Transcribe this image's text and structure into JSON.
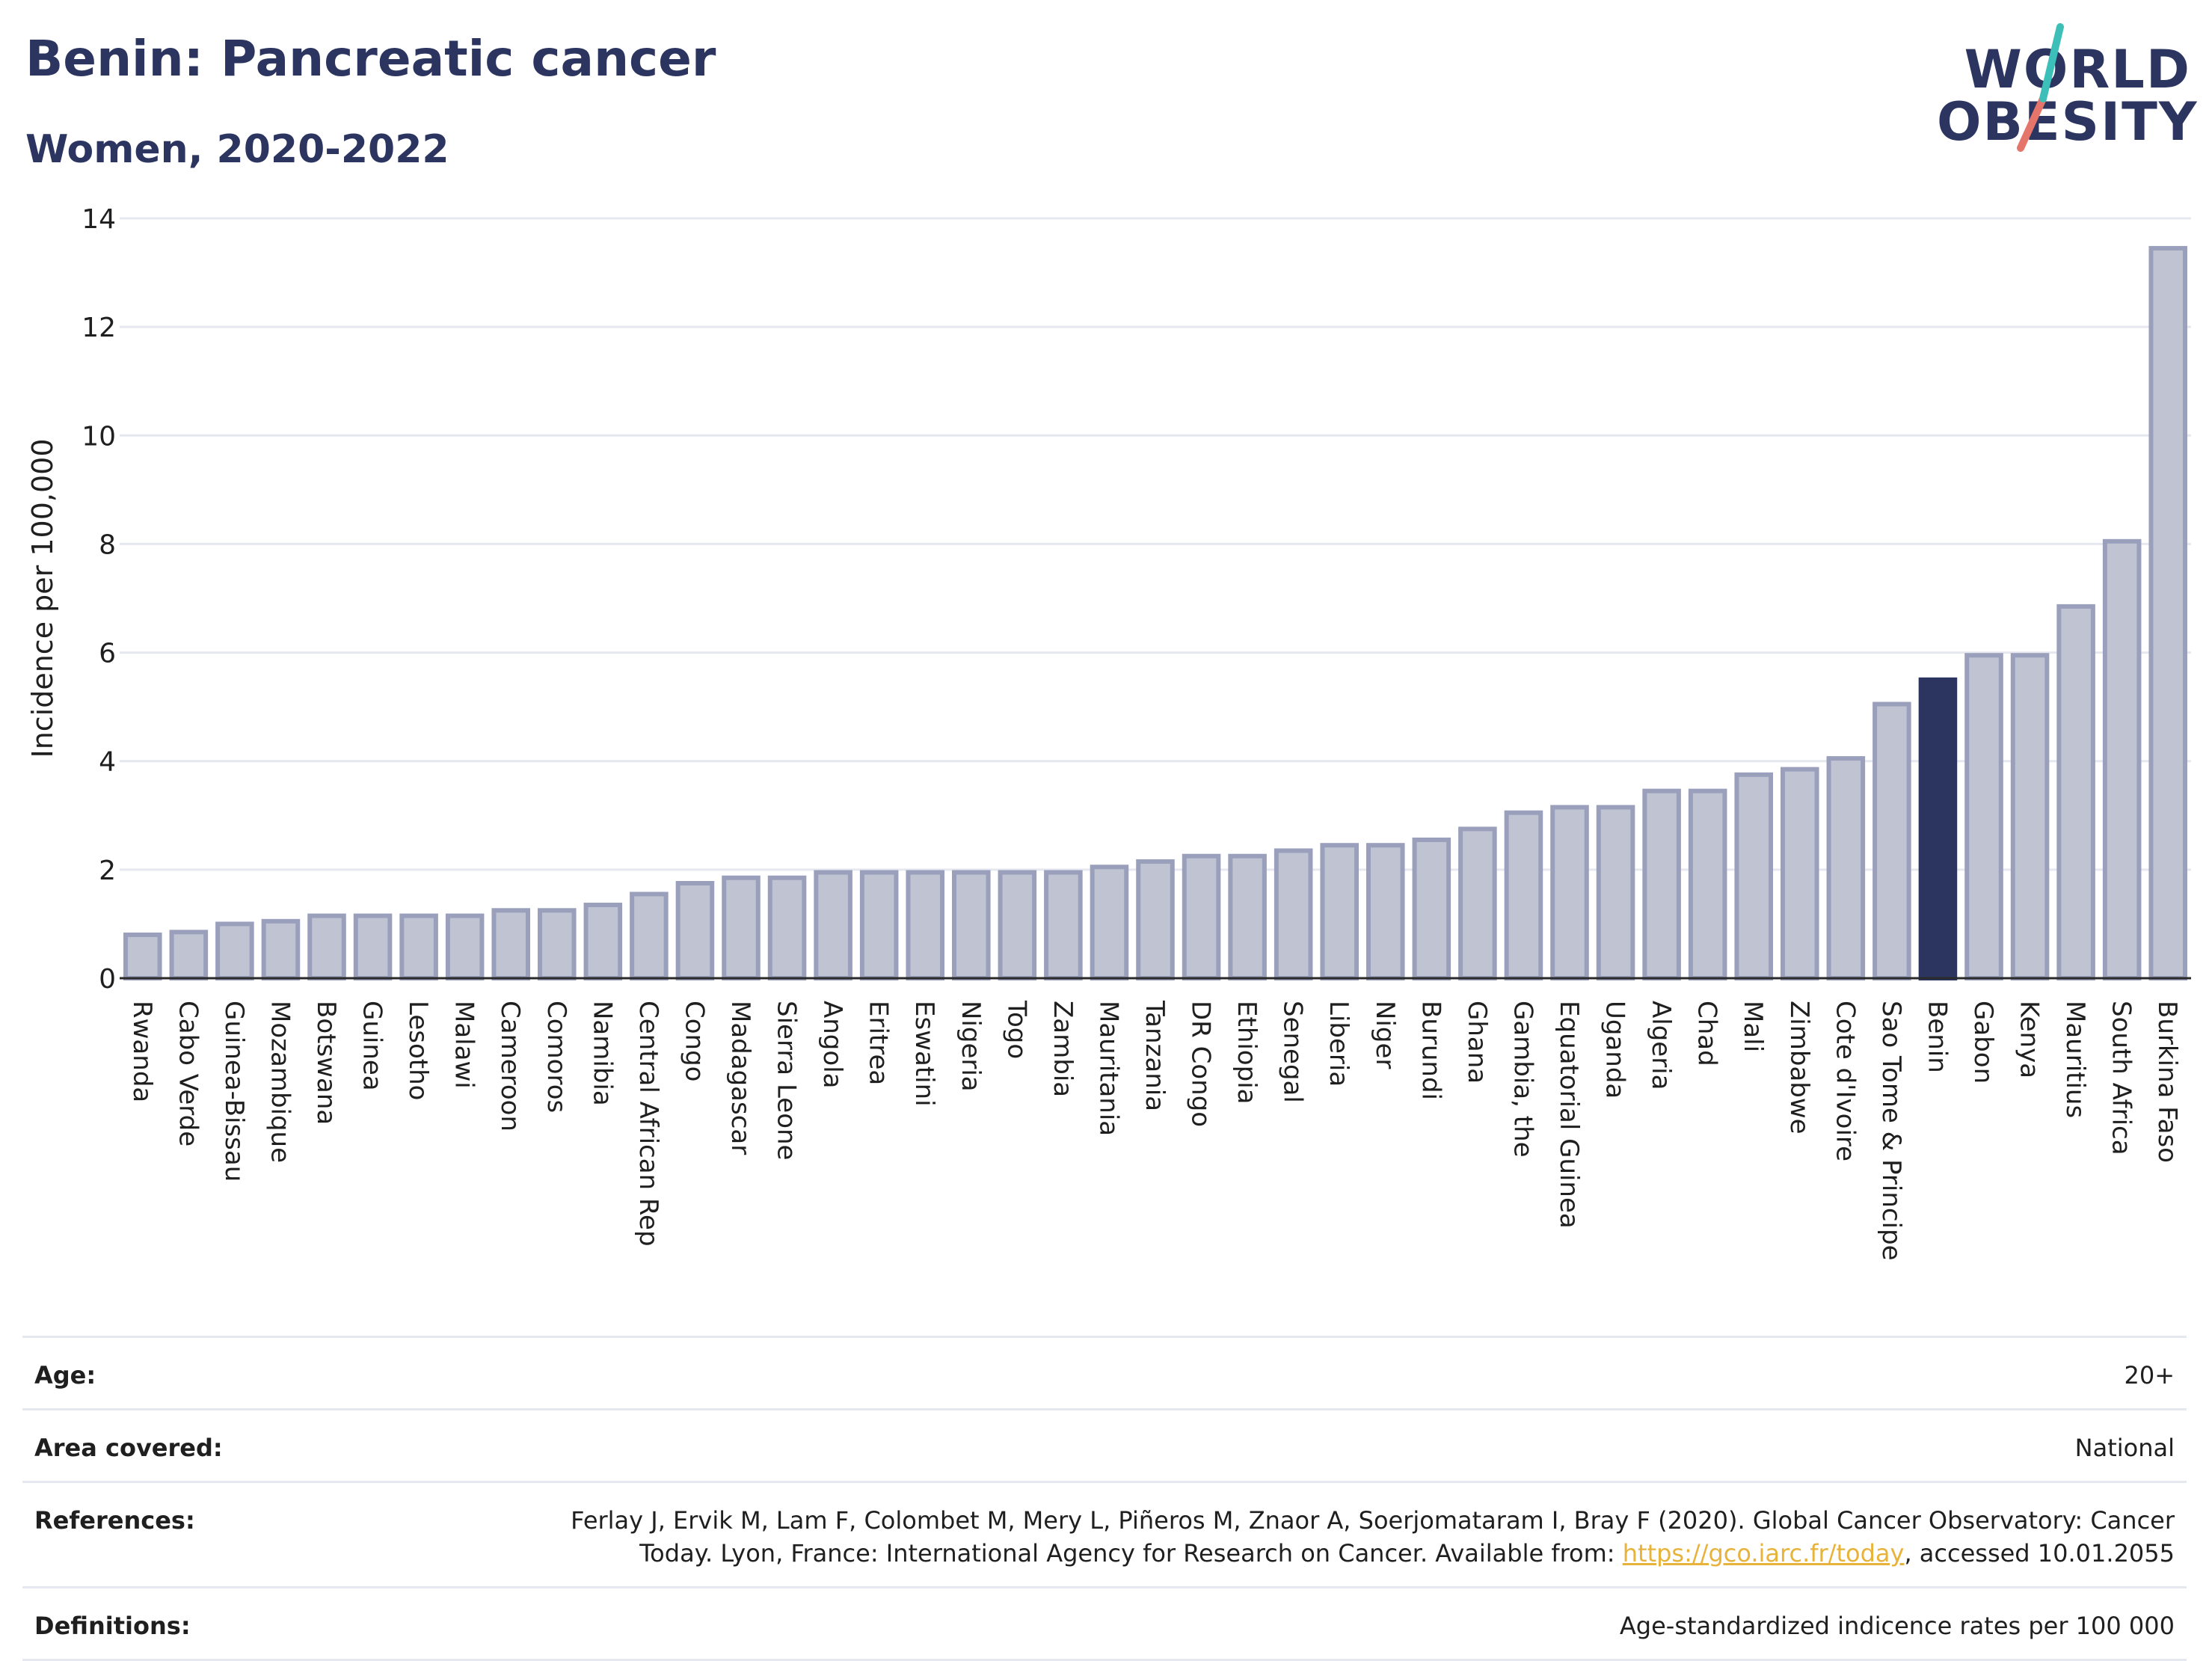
{
  "header": {
    "title": "Benin: Pancreatic cancer",
    "subtitle": "Women, 2020-2022"
  },
  "logo": {
    "line1": "WORLD",
    "line2": "OBESITY"
  },
  "colors": {
    "highlight": "#2b3560",
    "bar_fill": "#bfc3d2",
    "bar_stroke": "#9aa0bb",
    "grid": "#e6e8f0",
    "logo_teal": "#3bbfb8",
    "logo_red": "#e5756b"
  },
  "chart_data": {
    "type": "bar",
    "title": "Benin: Pancreatic cancer",
    "subtitle": "Women, 2020-2022",
    "ylabel": "Incidence per 100,000",
    "xlabel": "",
    "ylim": [
      0,
      14
    ],
    "yticks": [
      0,
      2,
      4,
      6,
      8,
      10,
      12,
      14
    ],
    "grid": true,
    "highlight": "Benin",
    "categories": [
      "Rwanda",
      "Cabo Verde",
      "Guinea-Bissau",
      "Mozambique",
      "Botswana",
      "Guinea",
      "Lesotho",
      "Malawi",
      "Cameroon",
      "Comoros",
      "Namibia",
      "Central African Rep",
      "Congo",
      "Madagascar",
      "Sierra Leone",
      "Angola",
      "Eritrea",
      "Eswatini",
      "Nigeria",
      "Togo",
      "Zambia",
      "Mauritania",
      "Tanzania",
      "DR Congo",
      "Ethiopia",
      "Senegal",
      "Liberia",
      "Niger",
      "Burundi",
      "Ghana",
      "Gambia, the",
      "Equatorial Guinea",
      "Uganda",
      "Algeria",
      "Chad",
      "Mali",
      "Zimbabwe",
      "Cote d'Ivoire",
      "Sao Tome & Principe",
      "Benin",
      "Gabon",
      "Kenya",
      "Mauritius",
      "South Africa",
      "Burkina Faso"
    ],
    "values": [
      0.8,
      0.85,
      1.0,
      1.05,
      1.15,
      1.15,
      1.15,
      1.15,
      1.25,
      1.25,
      1.35,
      1.55,
      1.75,
      1.85,
      1.85,
      1.95,
      1.95,
      1.95,
      1.95,
      1.95,
      1.95,
      2.05,
      2.15,
      2.25,
      2.25,
      2.35,
      2.45,
      2.45,
      2.55,
      2.75,
      3.05,
      3.15,
      3.15,
      3.45,
      3.45,
      3.75,
      3.85,
      4.05,
      5.05,
      5.5,
      5.95,
      5.95,
      6.85,
      8.05,
      13.45
    ]
  },
  "footer": {
    "rows": [
      {
        "label": "Age:",
        "value": "20+"
      },
      {
        "label": "Area covered:",
        "value": "National"
      },
      {
        "label": "References:",
        "value_pre": "Ferlay J, Ervik M, Lam F, Colombet M, Mery L, Piñeros M, Znaor A, Soerjomataram I, Bray F (2020). Global Cancer Observatory: Cancer Today. Lyon, France: International Agency for Research on Cancer. Available from: ",
        "link": "https://gco.iarc.fr/today",
        "value_post": ", accessed 10.01.2055"
      },
      {
        "label": "Definitions:",
        "value": "Age-standardized indicence rates per 100 000"
      }
    ]
  }
}
